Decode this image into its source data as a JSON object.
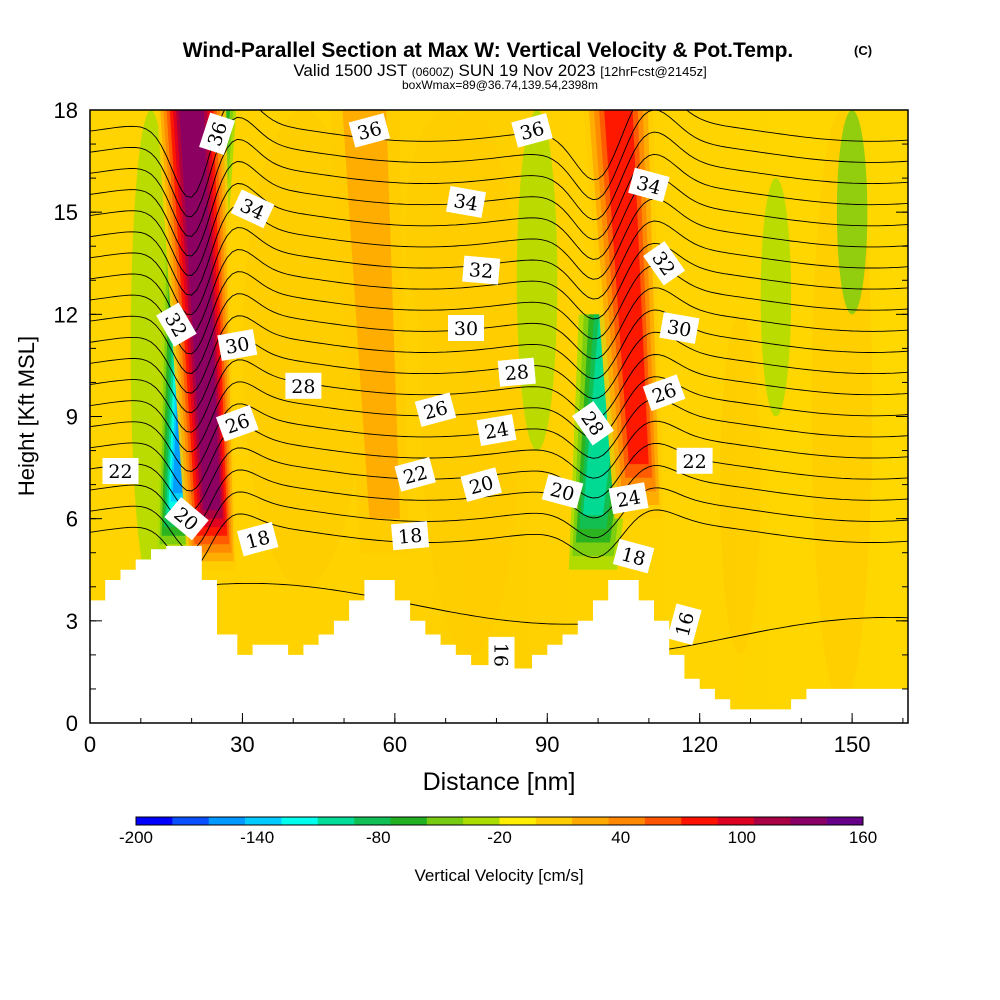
{
  "chart_data": {
    "type": "heatmap",
    "title": "Wind-Parallel Section at Max W: Vertical Velocity & Pot.Temp.",
    "title_mark": "(C)",
    "subtitle_parts": [
      "Valid 1500 JST ",
      "(0600Z)",
      " SUN 19 Nov 2023 ",
      "[12hrFcst@2145z]"
    ],
    "subtitle2": "boxWmax=89@36.74,139.54,2398m",
    "xlabel": "Distance [nm]",
    "ylabel": "Height [Kft MSL]",
    "xlim": [
      0,
      161
    ],
    "ylim": [
      0,
      18
    ],
    "xticks": [
      0,
      30,
      60,
      90,
      120,
      150
    ],
    "yticks": [
      0,
      3,
      6,
      9,
      12,
      15,
      18
    ],
    "colorbar": {
      "label": "Vertical Velocity [cm/s]",
      "tick_labels": [
        "-200",
        "-140",
        "-80",
        "-20",
        "40",
        "100",
        "160"
      ],
      "min": -200,
      "max": 160,
      "step": 20,
      "colors": [
        "#0000ff",
        "#0a4fff",
        "#0099ff",
        "#00ccff",
        "#00ffee",
        "#00dd99",
        "#11c055",
        "#22b022",
        "#77cc11",
        "#aadd00",
        "#ffee00",
        "#ffcc00",
        "#ffaa00",
        "#ff8800",
        "#ff5500",
        "#ff1100",
        "#dd0022",
        "#aa0044",
        "#880066",
        "#660088"
      ]
    },
    "vertical_velocity_features": [
      {
        "x": 18,
        "zmin": 5,
        "zmax": 18,
        "w": -150,
        "label": "downdraft"
      },
      {
        "x": 24,
        "zmin": 4.5,
        "zmax": 18,
        "w": 150,
        "label": "updraft"
      },
      {
        "x": 99,
        "zmin": 4.5,
        "zmax": 12,
        "w": -90,
        "label": "downdraft"
      },
      {
        "x": 108,
        "zmin": 6,
        "zmax": 18,
        "w": 90,
        "label": "updraft"
      },
      {
        "x": 58,
        "zmin": 5,
        "zmax": 18,
        "w": 40,
        "label": "updraft"
      }
    ],
    "theta_contours": {
      "levels": [
        16,
        17,
        18,
        19,
        20,
        21,
        22,
        23,
        24,
        25,
        26,
        27,
        28,
        29,
        30,
        31,
        32,
        33,
        34,
        35,
        36
      ],
      "labels": [
        {
          "text": "36",
          "x": 25,
          "z": 17.3,
          "rot": -72
        },
        {
          "text": "36",
          "x": 55,
          "z": 17.4,
          "rot": -15
        },
        {
          "text": "36",
          "x": 87,
          "z": 17.4,
          "rot": -15
        },
        {
          "text": "34",
          "x": 32,
          "z": 15.1,
          "rot": 25
        },
        {
          "text": "34",
          "x": 74,
          "z": 15.3,
          "rot": 10
        },
        {
          "text": "34",
          "x": 110,
          "z": 15.8,
          "rot": 15
        },
        {
          "text": "32",
          "x": 77,
          "z": 13.3,
          "rot": 5
        },
        {
          "text": "32",
          "x": 113,
          "z": 13.5,
          "rot": 55
        },
        {
          "text": "32",
          "x": 17,
          "z": 11.7,
          "rot": 60
        },
        {
          "text": "30",
          "x": 29,
          "z": 11.1,
          "rot": -10
        },
        {
          "text": "30",
          "x": 74,
          "z": 11.6,
          "rot": 0
        },
        {
          "text": "30",
          "x": 116,
          "z": 11.6,
          "rot": 10
        },
        {
          "text": "28",
          "x": 42,
          "z": 9.9,
          "rot": 0
        },
        {
          "text": "28",
          "x": 84,
          "z": 10.3,
          "rot": -5
        },
        {
          "text": "28",
          "x": 99,
          "z": 8.8,
          "rot": 55
        },
        {
          "text": "26",
          "x": 29,
          "z": 8.8,
          "rot": -20
        },
        {
          "text": "26",
          "x": 68,
          "z": 9.2,
          "rot": -15
        },
        {
          "text": "26",
          "x": 113,
          "z": 9.7,
          "rot": -20
        },
        {
          "text": "24",
          "x": 80,
          "z": 8.6,
          "rot": -10
        },
        {
          "text": "24",
          "x": 106,
          "z": 6.6,
          "rot": -10
        },
        {
          "text": "22",
          "x": 6,
          "z": 7.4,
          "rot": 0
        },
        {
          "text": "22",
          "x": 64,
          "z": 7.3,
          "rot": -15
        },
        {
          "text": "22",
          "x": 119,
          "z": 7.7,
          "rot": 0
        },
        {
          "text": "20",
          "x": 19,
          "z": 6.0,
          "rot": 40
        },
        {
          "text": "20",
          "x": 77,
          "z": 7.0,
          "rot": -15
        },
        {
          "text": "20",
          "x": 93,
          "z": 6.8,
          "rot": 15
        },
        {
          "text": "18",
          "x": 33,
          "z": 5.4,
          "rot": -15
        },
        {
          "text": "18",
          "x": 63,
          "z": 5.5,
          "rot": -5
        },
        {
          "text": "18",
          "x": 107,
          "z": 4.9,
          "rot": 15
        },
        {
          "text": "16",
          "x": 117,
          "z": 2.9,
          "rot": -75
        },
        {
          "text": "16",
          "x": 81,
          "z": 2.0,
          "rot": 90
        }
      ]
    },
    "terrain_kft": [
      [
        0,
        3.6
      ],
      [
        3,
        3.6
      ],
      [
        3,
        4.2
      ],
      [
        6,
        4.2
      ],
      [
        6,
        4.5
      ],
      [
        9,
        4.5
      ],
      [
        9,
        4.8
      ],
      [
        12,
        4.8
      ],
      [
        12,
        5.1
      ],
      [
        15,
        5.1
      ],
      [
        15,
        5.2
      ],
      [
        22,
        5.2
      ],
      [
        22,
        4.2
      ],
      [
        25,
        4.2
      ],
      [
        25,
        2.6
      ],
      [
        29,
        2.6
      ],
      [
        29,
        2.0
      ],
      [
        32,
        2.0
      ],
      [
        32,
        2.3
      ],
      [
        39,
        2.3
      ],
      [
        39,
        2.0
      ],
      [
        42,
        2.0
      ],
      [
        42,
        2.3
      ],
      [
        45,
        2.3
      ],
      [
        45,
        2.6
      ],
      [
        48,
        2.6
      ],
      [
        48,
        3.0
      ],
      [
        51,
        3.0
      ],
      [
        51,
        3.6
      ],
      [
        54,
        3.6
      ],
      [
        54,
        4.2
      ],
      [
        60,
        4.2
      ],
      [
        60,
        3.6
      ],
      [
        63,
        3.6
      ],
      [
        63,
        3.0
      ],
      [
        66,
        3.0
      ],
      [
        66,
        2.6
      ],
      [
        69,
        2.6
      ],
      [
        69,
        2.3
      ],
      [
        72,
        2.3
      ],
      [
        72,
        2.0
      ],
      [
        75,
        2.0
      ],
      [
        75,
        1.7
      ],
      [
        81,
        1.7
      ],
      [
        81,
        1.6
      ],
      [
        87,
        1.6
      ],
      [
        87,
        2.0
      ],
      [
        90,
        2.0
      ],
      [
        90,
        2.3
      ],
      [
        93,
        2.3
      ],
      [
        93,
        2.6
      ],
      [
        96,
        2.6
      ],
      [
        96,
        3.0
      ],
      [
        99,
        3.0
      ],
      [
        99,
        3.6
      ],
      [
        102,
        3.6
      ],
      [
        102,
        4.2
      ],
      [
        108,
        4.2
      ],
      [
        108,
        3.6
      ],
      [
        111,
        3.6
      ],
      [
        111,
        3.0
      ],
      [
        114,
        3.0
      ],
      [
        114,
        2.0
      ],
      [
        117,
        2.0
      ],
      [
        117,
        1.3
      ],
      [
        120,
        1.3
      ],
      [
        120,
        1.0
      ],
      [
        123,
        1.0
      ],
      [
        123,
        0.7
      ],
      [
        126,
        0.7
      ],
      [
        126,
        0.4
      ],
      [
        138,
        0.4
      ],
      [
        138,
        0.7
      ],
      [
        141,
        0.7
      ],
      [
        141,
        1.0
      ],
      [
        161,
        1.0
      ]
    ],
    "grid": false
  }
}
